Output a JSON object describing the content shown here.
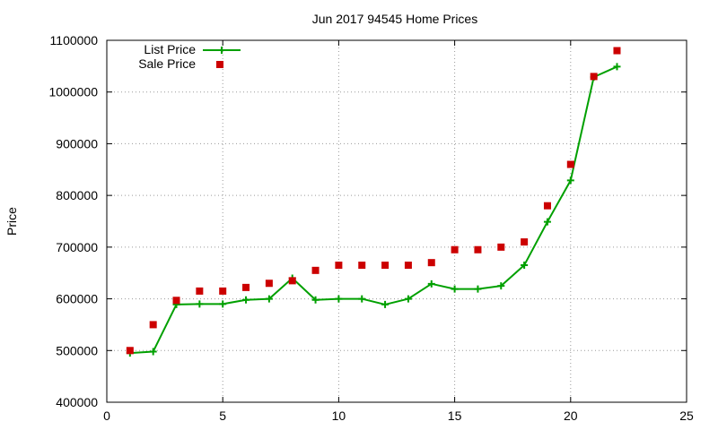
{
  "chart_data": {
    "type": "line",
    "title": "Jun 2017 94545 Home Prices",
    "xlabel": "",
    "ylabel": "Price",
    "xlim": [
      0,
      25
    ],
    "ylim": [
      400000,
      1100000
    ],
    "x_ticks": [
      0,
      5,
      10,
      15,
      20,
      25
    ],
    "y_ticks": [
      400000,
      500000,
      600000,
      700000,
      800000,
      900000,
      1000000,
      1100000
    ],
    "grid": true,
    "legend_position": "top-left",
    "series": [
      {
        "name": "List Price",
        "style": "line-with-plus-markers",
        "color": "#00a000",
        "x": [
          1,
          2,
          3,
          4,
          5,
          6,
          7,
          8,
          9,
          10,
          11,
          12,
          13,
          14,
          15,
          16,
          17,
          18,
          19,
          20,
          21,
          22
        ],
        "y": [
          495000,
          498000,
          589000,
          590000,
          590000,
          598000,
          600000,
          640000,
          598000,
          600000,
          600000,
          589000,
          600000,
          629000,
          619000,
          619000,
          625000,
          665000,
          749000,
          829000,
          1029000,
          1049000
        ]
      },
      {
        "name": "Sale Price",
        "style": "square-markers",
        "color": "#cc0000",
        "x": [
          1,
          2,
          3,
          4,
          5,
          6,
          7,
          8,
          9,
          10,
          11,
          12,
          13,
          14,
          15,
          16,
          17,
          18,
          19,
          20,
          21,
          22
        ],
        "y": [
          500000,
          550000,
          597000,
          615000,
          615000,
          622000,
          630000,
          635000,
          655000,
          665000,
          665000,
          665000,
          665000,
          670000,
          695000,
          695000,
          700000,
          710000,
          780000,
          860000,
          1030000,
          1080000
        ]
      }
    ]
  }
}
